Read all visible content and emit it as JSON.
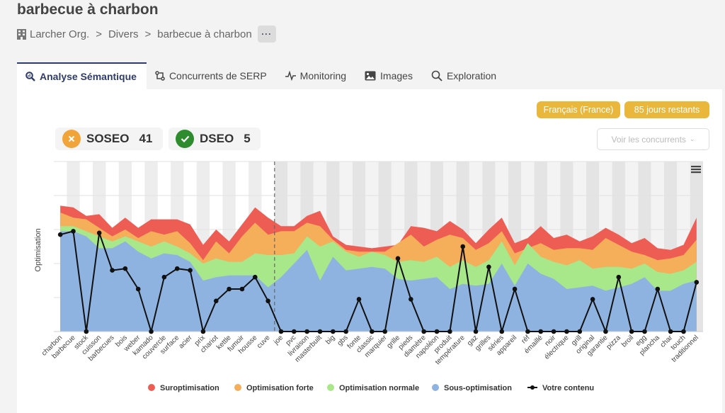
{
  "page": {
    "title": "barbecue à charbon",
    "breadcrumb": [
      "Larcher Org.",
      "Divers",
      "barbecue à charbon"
    ],
    "breadcrumb_separator": ">",
    "more_label": "···"
  },
  "tabs": [
    {
      "label": "Analyse Sémantique",
      "icon": "search-chart-icon"
    },
    {
      "label": "Concurrents de SERP",
      "icon": "compare-icon"
    },
    {
      "label": "Monitoring",
      "icon": "pulse-icon"
    },
    {
      "label": "Images",
      "icon": "image-icon"
    },
    {
      "label": "Exploration",
      "icon": "search-icon"
    }
  ],
  "badges": {
    "language": "Français (France)",
    "days": "85 jours restants"
  },
  "scores": {
    "soseo": {
      "label": "SOSEO",
      "value": "41",
      "color": "#f0a43a"
    },
    "dseo": {
      "label": "DSEO",
      "value": "5",
      "color": "#2e8b2e"
    }
  },
  "competitors_button": "Voir les concurrents",
  "colors": {
    "accent": "#2f3c6b",
    "badge": "#e9b73b"
  },
  "chart_data": {
    "type": "area",
    "ylabel": "Optimisation",
    "ylim": [
      0,
      100
    ],
    "categories": [
      "charbon",
      "barbecue",
      "stock",
      "cuisson",
      "barbecues",
      "bois",
      "weber",
      "kamado",
      "couvercle",
      "surface",
      "acier",
      "prix",
      "chariot",
      "kettle",
      "fumoir",
      "housse",
      "cuve",
      "joe",
      "pvc",
      "livraison",
      "masterbuilt",
      "big",
      "gbs",
      "fonte",
      "classic",
      "marquier",
      "grille",
      "pieds",
      "diamètre",
      "napoléon",
      "produit",
      "température",
      "gaz",
      "grilles",
      "séries",
      "appareil",
      "réf",
      "émaillé",
      "noir",
      "électrique",
      "grill",
      "original",
      "garantie",
      "pizza",
      "broil",
      "egg",
      "plancha",
      "char",
      "touch",
      "traditionnel"
    ],
    "series": [
      {
        "name": "Sous-optimisation",
        "color": "#8fb3e0",
        "values": [
          59,
          59,
          56,
          49,
          49,
          53,
          47,
          43,
          46,
          45,
          41,
          30,
          32,
          33,
          33,
          33,
          26,
          32,
          40,
          48,
          30,
          44,
          36,
          37,
          38,
          37,
          31,
          30,
          31,
          32,
          25,
          28,
          27,
          28,
          40,
          27,
          40,
          34,
          31,
          25,
          26,
          27,
          24,
          26,
          28,
          32,
          24,
          24,
          28,
          30
        ]
      },
      {
        "name": "Optimisation normale",
        "color": "#a8e78a",
        "values": [
          62,
          62,
          59,
          56,
          53,
          56,
          53,
          50,
          53,
          50,
          46,
          40,
          43,
          41,
          41,
          46,
          45,
          45,
          46,
          56,
          50,
          53,
          47,
          44,
          47,
          45,
          41,
          42,
          41,
          44,
          38,
          42,
          38,
          42,
          53,
          39,
          52,
          44,
          41,
          39,
          42,
          37,
          38,
          38,
          37,
          40,
          35,
          34,
          36,
          41
        ]
      },
      {
        "name": "Optimisation forte",
        "color": "#f5ae5a",
        "values": [
          70,
          67,
          66,
          61,
          56,
          60,
          55,
          59,
          57,
          59,
          52,
          42,
          53,
          46,
          56,
          64,
          57,
          59,
          59,
          64,
          62,
          54,
          48,
          47,
          47,
          47,
          52,
          57,
          50,
          54,
          57,
          55,
          48,
          52,
          59,
          46,
          49,
          52,
          48,
          49,
          49,
          48,
          55,
          51,
          47,
          45,
          42,
          43,
          45,
          54
        ]
      },
      {
        "name": "Suroptimisation",
        "color": "#ee5d54",
        "values": [
          74,
          73,
          68,
          69,
          61,
          67,
          61,
          66,
          66,
          66,
          63,
          51,
          60,
          53,
          63,
          73,
          67,
          62,
          62,
          68,
          71,
          56,
          51,
          50,
          49,
          50,
          51,
          62,
          61,
          59,
          65,
          60,
          52,
          60,
          67,
          52,
          55,
          62,
          55,
          57,
          53,
          56,
          61,
          57,
          52,
          55,
          49,
          48,
          51,
          67
        ]
      },
      {
        "name": "Votre contenu",
        "color": "#111111",
        "values": [
          57,
          59,
          0,
          58,
          36,
          37,
          25,
          0,
          32,
          37,
          36,
          0,
          18,
          25,
          25,
          32,
          18,
          0,
          0,
          0,
          0,
          0,
          0,
          19,
          0,
          0,
          43,
          19,
          0,
          0,
          0,
          50,
          0,
          38,
          0,
          25,
          0,
          0,
          0,
          0,
          0,
          19,
          0,
          32,
          0,
          0,
          25,
          0,
          0,
          29
        ]
      }
    ],
    "legend": [
      "Suroptimisation",
      "Optimisation forte",
      "Optimisation normale",
      "Sous-optimisation",
      "Votre contenu"
    ],
    "legend_position": "bottom",
    "divider_after": "cuve",
    "menu_icon": "hamburger-icon"
  }
}
